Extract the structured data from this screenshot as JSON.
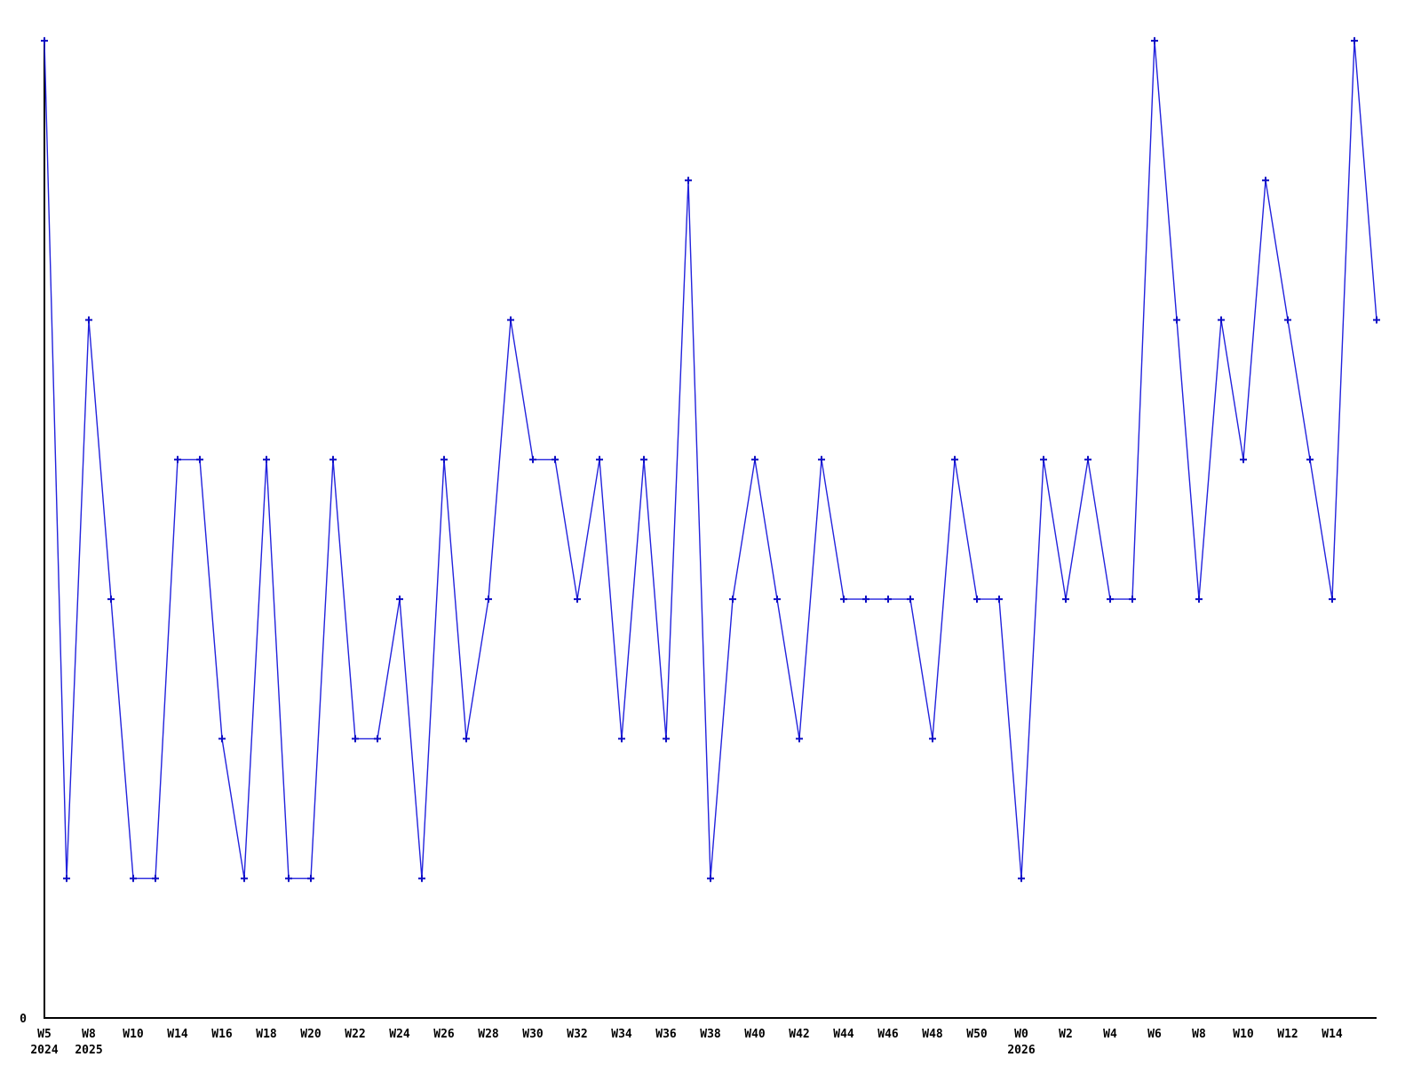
{
  "figure": {
    "background": "#ffffff",
    "axis_color": "#000000",
    "origin_label": "0"
  },
  "chart_data": {
    "type": "line",
    "title": "",
    "xlabel": "",
    "ylabel": "",
    "ylim": [
      0,
      7
    ],
    "grid": false,
    "legend_position": "none",
    "line_color": "#2222dd",
    "marker_color": "#0d0dc4",
    "marker": "plus",
    "x_tick_note": "week ticks labeled on every other point; year shown on second line at W5 2024, W8 2025, W0 2026",
    "points": [
      {
        "week": "W5",
        "year": "2024",
        "value": 7
      },
      {
        "week": "",
        "year": "",
        "value": 1
      },
      {
        "week": "W8",
        "year": "2025",
        "value": 5
      },
      {
        "week": "",
        "year": "",
        "value": 3
      },
      {
        "week": "W10",
        "year": "",
        "value": 1
      },
      {
        "week": "",
        "year": "",
        "value": 1
      },
      {
        "week": "W14",
        "year": "",
        "value": 4
      },
      {
        "week": "",
        "year": "",
        "value": 4
      },
      {
        "week": "W16",
        "year": "",
        "value": 2
      },
      {
        "week": "",
        "year": "",
        "value": 1
      },
      {
        "week": "W18",
        "year": "",
        "value": 4
      },
      {
        "week": "",
        "year": "",
        "value": 1
      },
      {
        "week": "W20",
        "year": "",
        "value": 1
      },
      {
        "week": "",
        "year": "",
        "value": 4
      },
      {
        "week": "W22",
        "year": "",
        "value": 2
      },
      {
        "week": "",
        "year": "",
        "value": 2
      },
      {
        "week": "W24",
        "year": "",
        "value": 3
      },
      {
        "week": "",
        "year": "",
        "value": 1
      },
      {
        "week": "W26",
        "year": "",
        "value": 4
      },
      {
        "week": "",
        "year": "",
        "value": 2
      },
      {
        "week": "W28",
        "year": "",
        "value": 3
      },
      {
        "week": "",
        "year": "",
        "value": 5
      },
      {
        "week": "W30",
        "year": "",
        "value": 4
      },
      {
        "week": "",
        "year": "",
        "value": 4
      },
      {
        "week": "W32",
        "year": "",
        "value": 3
      },
      {
        "week": "",
        "year": "",
        "value": 4
      },
      {
        "week": "W34",
        "year": "",
        "value": 2
      },
      {
        "week": "",
        "year": "",
        "value": 4
      },
      {
        "week": "W36",
        "year": "",
        "value": 2
      },
      {
        "week": "",
        "year": "",
        "value": 6
      },
      {
        "week": "W38",
        "year": "",
        "value": 1
      },
      {
        "week": "",
        "year": "",
        "value": 3
      },
      {
        "week": "W40",
        "year": "",
        "value": 4
      },
      {
        "week": "",
        "year": "",
        "value": 3
      },
      {
        "week": "W42",
        "year": "",
        "value": 2
      },
      {
        "week": "",
        "year": "",
        "value": 4
      },
      {
        "week": "W44",
        "year": "",
        "value": 3
      },
      {
        "week": "",
        "year": "",
        "value": 3
      },
      {
        "week": "W46",
        "year": "",
        "value": 3
      },
      {
        "week": "",
        "year": "",
        "value": 3
      },
      {
        "week": "W48",
        "year": "",
        "value": 2
      },
      {
        "week": "",
        "year": "",
        "value": 4
      },
      {
        "week": "W50",
        "year": "",
        "value": 3
      },
      {
        "week": "",
        "year": "",
        "value": 3
      },
      {
        "week": "W0",
        "year": "2026",
        "value": 1
      },
      {
        "week": "",
        "year": "",
        "value": 4
      },
      {
        "week": "W2",
        "year": "",
        "value": 3
      },
      {
        "week": "",
        "year": "",
        "value": 4
      },
      {
        "week": "W4",
        "year": "",
        "value": 3
      },
      {
        "week": "",
        "year": "",
        "value": 3
      },
      {
        "week": "W6",
        "year": "",
        "value": 7
      },
      {
        "week": "",
        "year": "",
        "value": 5
      },
      {
        "week": "W8",
        "year": "",
        "value": 3
      },
      {
        "week": "",
        "year": "",
        "value": 5
      },
      {
        "week": "W10",
        "year": "",
        "value": 4
      },
      {
        "week": "",
        "year": "",
        "value": 6
      },
      {
        "week": "W12",
        "year": "",
        "value": 5
      },
      {
        "week": "",
        "year": "",
        "value": 4
      },
      {
        "week": "W14",
        "year": "",
        "value": 3
      },
      {
        "week": "",
        "year": "",
        "value": 7
      },
      {
        "week": "",
        "year": "",
        "value": 5
      }
    ]
  }
}
